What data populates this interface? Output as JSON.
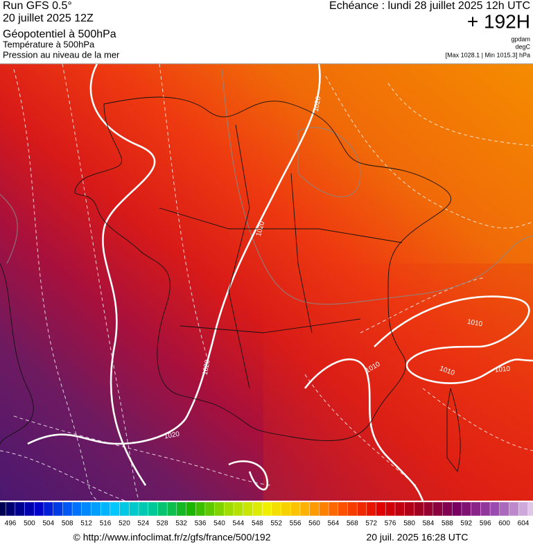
{
  "header": {
    "run": "Run GFS 0.5°",
    "date": "20 juillet 2025 12Z",
    "title": "Géopotentiel à 500hPa",
    "subtitle1": "Température à 500hPa",
    "subtitle2": "Pression au niveau de la mer",
    "valid": "Echéance : lundi 28 juillet 2025 12h UTC",
    "lead": "+ 192H",
    "unit1": "gpdam",
    "unit2": "degC",
    "extremes": "[Max 1028.1 | Min 1015.3] hPa"
  },
  "contour_labels": [
    "1020",
    "1020",
    "1020",
    "1020",
    "1010",
    "1010",
    "1010",
    "1010"
  ],
  "colorbar": {
    "ticks": [
      496,
      500,
      504,
      508,
      512,
      516,
      520,
      524,
      528,
      532,
      536,
      540,
      544,
      548,
      552,
      556,
      560,
      564,
      568,
      572,
      576,
      580,
      584,
      588,
      592,
      596,
      600,
      604
    ],
    "colors": [
      "#000050",
      "#0000c8",
      "#0070ff",
      "#00c8ff",
      "#00c89a",
      "#18b400",
      "#a0dc00",
      "#f0f000",
      "#ffb400",
      "#ff5000",
      "#e00000",
      "#a00020",
      "#780060",
      "#9a4ab0",
      "#e0c8e8"
    ]
  },
  "footer": {
    "source": "© http://www.infoclimat.fr/z/gfs/france/500/192",
    "generated": "20 juil. 2025 16:28 UTC"
  }
}
